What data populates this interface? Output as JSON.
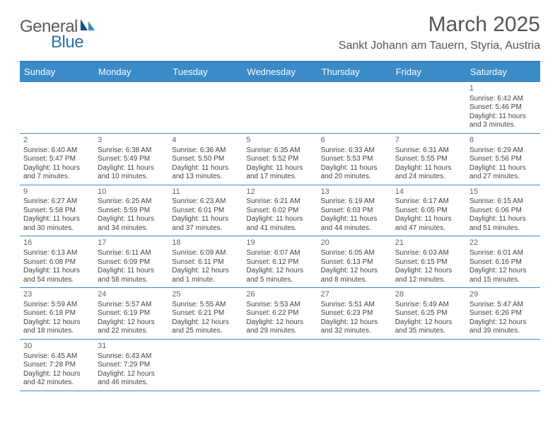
{
  "logo": {
    "text1": "General",
    "text2": "Blue"
  },
  "title": "March 2025",
  "location": "Sankt Johann am Tauern, Styria, Austria",
  "colors": {
    "header_bg": "#3b8bc9",
    "header_border": "#377bbf",
    "row_divider": "#3b8bc9",
    "text": "#444444",
    "title": "#555555"
  },
  "weekdays": [
    "Sunday",
    "Monday",
    "Tuesday",
    "Wednesday",
    "Thursday",
    "Friday",
    "Saturday"
  ],
  "weeks": [
    [
      null,
      null,
      null,
      null,
      null,
      null,
      {
        "n": "1",
        "sr": "Sunrise: 6:42 AM",
        "ss": "Sunset: 5:46 PM",
        "dl": "Daylight: 11 hours and 3 minutes."
      }
    ],
    [
      {
        "n": "2",
        "sr": "Sunrise: 6:40 AM",
        "ss": "Sunset: 5:47 PM",
        "dl": "Daylight: 11 hours and 7 minutes."
      },
      {
        "n": "3",
        "sr": "Sunrise: 6:38 AM",
        "ss": "Sunset: 5:49 PM",
        "dl": "Daylight: 11 hours and 10 minutes."
      },
      {
        "n": "4",
        "sr": "Sunrise: 6:36 AM",
        "ss": "Sunset: 5:50 PM",
        "dl": "Daylight: 11 hours and 13 minutes."
      },
      {
        "n": "5",
        "sr": "Sunrise: 6:35 AM",
        "ss": "Sunset: 5:52 PM",
        "dl": "Daylight: 11 hours and 17 minutes."
      },
      {
        "n": "6",
        "sr": "Sunrise: 6:33 AM",
        "ss": "Sunset: 5:53 PM",
        "dl": "Daylight: 11 hours and 20 minutes."
      },
      {
        "n": "7",
        "sr": "Sunrise: 6:31 AM",
        "ss": "Sunset: 5:55 PM",
        "dl": "Daylight: 11 hours and 24 minutes."
      },
      {
        "n": "8",
        "sr": "Sunrise: 6:29 AM",
        "ss": "Sunset: 5:56 PM",
        "dl": "Daylight: 11 hours and 27 minutes."
      }
    ],
    [
      {
        "n": "9",
        "sr": "Sunrise: 6:27 AM",
        "ss": "Sunset: 5:58 PM",
        "dl": "Daylight: 11 hours and 30 minutes."
      },
      {
        "n": "10",
        "sr": "Sunrise: 6:25 AM",
        "ss": "Sunset: 5:59 PM",
        "dl": "Daylight: 11 hours and 34 minutes."
      },
      {
        "n": "11",
        "sr": "Sunrise: 6:23 AM",
        "ss": "Sunset: 6:01 PM",
        "dl": "Daylight: 11 hours and 37 minutes."
      },
      {
        "n": "12",
        "sr": "Sunrise: 6:21 AM",
        "ss": "Sunset: 6:02 PM",
        "dl": "Daylight: 11 hours and 41 minutes."
      },
      {
        "n": "13",
        "sr": "Sunrise: 6:19 AM",
        "ss": "Sunset: 6:03 PM",
        "dl": "Daylight: 11 hours and 44 minutes."
      },
      {
        "n": "14",
        "sr": "Sunrise: 6:17 AM",
        "ss": "Sunset: 6:05 PM",
        "dl": "Daylight: 11 hours and 47 minutes."
      },
      {
        "n": "15",
        "sr": "Sunrise: 6:15 AM",
        "ss": "Sunset: 6:06 PM",
        "dl": "Daylight: 11 hours and 51 minutes."
      }
    ],
    [
      {
        "n": "16",
        "sr": "Sunrise: 6:13 AM",
        "ss": "Sunset: 6:08 PM",
        "dl": "Daylight: 11 hours and 54 minutes."
      },
      {
        "n": "17",
        "sr": "Sunrise: 6:11 AM",
        "ss": "Sunset: 6:09 PM",
        "dl": "Daylight: 11 hours and 58 minutes."
      },
      {
        "n": "18",
        "sr": "Sunrise: 6:09 AM",
        "ss": "Sunset: 6:11 PM",
        "dl": "Daylight: 12 hours and 1 minute."
      },
      {
        "n": "19",
        "sr": "Sunrise: 6:07 AM",
        "ss": "Sunset: 6:12 PM",
        "dl": "Daylight: 12 hours and 5 minutes."
      },
      {
        "n": "20",
        "sr": "Sunrise: 6:05 AM",
        "ss": "Sunset: 6:13 PM",
        "dl": "Daylight: 12 hours and 8 minutes."
      },
      {
        "n": "21",
        "sr": "Sunrise: 6:03 AM",
        "ss": "Sunset: 6:15 PM",
        "dl": "Daylight: 12 hours and 12 minutes."
      },
      {
        "n": "22",
        "sr": "Sunrise: 6:01 AM",
        "ss": "Sunset: 6:16 PM",
        "dl": "Daylight: 12 hours and 15 minutes."
      }
    ],
    [
      {
        "n": "23",
        "sr": "Sunrise: 5:59 AM",
        "ss": "Sunset: 6:18 PM",
        "dl": "Daylight: 12 hours and 18 minutes."
      },
      {
        "n": "24",
        "sr": "Sunrise: 5:57 AM",
        "ss": "Sunset: 6:19 PM",
        "dl": "Daylight: 12 hours and 22 minutes."
      },
      {
        "n": "25",
        "sr": "Sunrise: 5:55 AM",
        "ss": "Sunset: 6:21 PM",
        "dl": "Daylight: 12 hours and 25 minutes."
      },
      {
        "n": "26",
        "sr": "Sunrise: 5:53 AM",
        "ss": "Sunset: 6:22 PM",
        "dl": "Daylight: 12 hours and 29 minutes."
      },
      {
        "n": "27",
        "sr": "Sunrise: 5:51 AM",
        "ss": "Sunset: 6:23 PM",
        "dl": "Daylight: 12 hours and 32 minutes."
      },
      {
        "n": "28",
        "sr": "Sunrise: 5:49 AM",
        "ss": "Sunset: 6:25 PM",
        "dl": "Daylight: 12 hours and 35 minutes."
      },
      {
        "n": "29",
        "sr": "Sunrise: 5:47 AM",
        "ss": "Sunset: 6:26 PM",
        "dl": "Daylight: 12 hours and 39 minutes."
      }
    ],
    [
      {
        "n": "30",
        "sr": "Sunrise: 6:45 AM",
        "ss": "Sunset: 7:28 PM",
        "dl": "Daylight: 12 hours and 42 minutes."
      },
      {
        "n": "31",
        "sr": "Sunrise: 6:43 AM",
        "ss": "Sunset: 7:29 PM",
        "dl": "Daylight: 12 hours and 46 minutes."
      },
      null,
      null,
      null,
      null,
      null
    ]
  ]
}
